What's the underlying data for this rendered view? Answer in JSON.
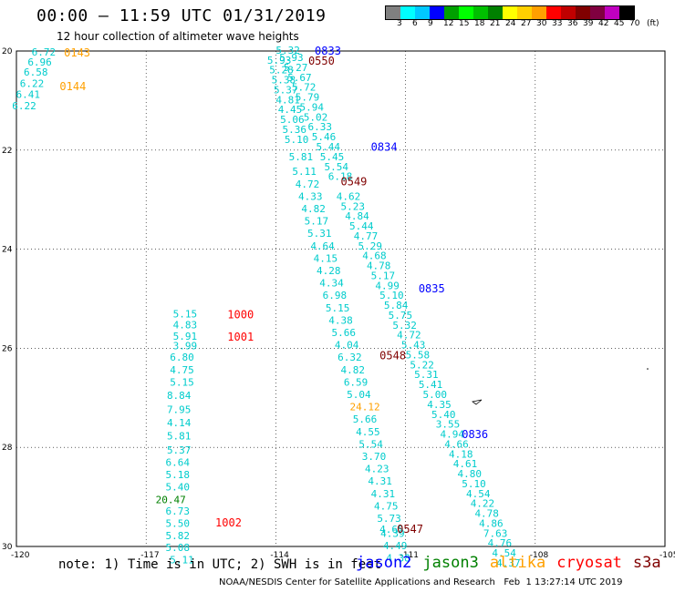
{
  "header": {
    "title": "00:00 – 11:59 UTC 01/31/2019",
    "subtitle": "12 hour collection of altimeter wave heights"
  },
  "colorbar": {
    "unit_label": "(ft)",
    "labels": [
      "3",
      "6",
      "9",
      "12",
      "15",
      "18",
      "21",
      "24",
      "27",
      "30",
      "33",
      "36",
      "39",
      "42",
      "45",
      "70"
    ],
    "colors": [
      "#808080",
      "#00ffff",
      "#00c8ff",
      "#0000ff",
      "#00a000",
      "#00ff00",
      "#00c000",
      "#008000",
      "#ffff00",
      "#ffd000",
      "#ffa000",
      "#ff0000",
      "#c00000",
      "#800000",
      "#800040",
      "#c000c0",
      "#000000"
    ]
  },
  "axes": {
    "x_ticks": [
      "-120",
      "-117",
      "-114",
      "-111",
      "-108",
      "-105"
    ],
    "y_ticks": [
      "20",
      "22",
      "24",
      "26",
      "28",
      "30"
    ]
  },
  "legend": {
    "jason2": {
      "label": "jason2",
      "color": "#0000ff"
    },
    "jason3": {
      "label": "jason3",
      "color": "#008000"
    },
    "altika": {
      "label": "altika",
      "color": "#ffa000"
    },
    "cryosat": {
      "label": "cryosat",
      "color": "#ff0000"
    },
    "s3a": {
      "label": "s3a",
      "color": "#800000"
    }
  },
  "footer": {
    "note": "note: 1) Time is in UTC; 2) SWH is in feet",
    "credit": "NOAA/NESDIS Center for Satellite Applications and Research   Feb  1 13:27:14 UTC 2019"
  },
  "time_labels": [
    {
      "text": "0143",
      "sat": "altika",
      "lon": -118.9,
      "lat": 20.02
    },
    {
      "text": "0144",
      "sat": "altika",
      "lon": -119.0,
      "lat": 20.7
    },
    {
      "text": "0833",
      "sat": "jason2",
      "lon": -113.1,
      "lat": 19.98
    },
    {
      "text": "0550",
      "sat": "s3a",
      "lon": -113.25,
      "lat": 20.18
    },
    {
      "text": "0834",
      "sat": "jason2",
      "lon": -111.8,
      "lat": 21.92
    },
    {
      "text": "0549",
      "sat": "s3a",
      "lon": -112.5,
      "lat": 22.62
    },
    {
      "text": "0835",
      "sat": "jason2",
      "lon": -110.7,
      "lat": 24.78
    },
    {
      "text": "1000",
      "sat": "cryosat",
      "lon": -115.12,
      "lat": 25.3
    },
    {
      "text": "1001",
      "sat": "cryosat",
      "lon": -115.12,
      "lat": 25.75
    },
    {
      "text": "0548",
      "sat": "s3a",
      "lon": -111.6,
      "lat": 26.13
    },
    {
      "text": "0836",
      "sat": "jason2",
      "lon": -109.7,
      "lat": 27.72
    },
    {
      "text": "1002",
      "sat": "cryosat",
      "lon": -115.4,
      "lat": 29.5
    },
    {
      "text": "0547",
      "sat": "s3a",
      "lon": -111.2,
      "lat": 29.63
    }
  ],
  "tracks": [
    {
      "sat": "altika",
      "points": [
        {
          "v": "6.72",
          "lon": -119.65,
          "lat": 20.02
        },
        {
          "v": "6.96",
          "lon": -119.74,
          "lat": 20.22
        },
        {
          "v": "6.58",
          "lon": -119.83,
          "lat": 20.42
        },
        {
          "v": "6.22",
          "lon": -119.92,
          "lat": 20.65
        },
        {
          "v": "6.41",
          "lon": -120.01,
          "lat": 20.87
        },
        {
          "v": "6.22",
          "lon": -120.1,
          "lat": 21.1
        }
      ]
    },
    {
      "sat": "jason2",
      "points": [
        {
          "v": "5.32",
          "lon": -114.0,
          "lat": 19.98
        },
        {
          "v": "5.93",
          "lon": -113.92,
          "lat": 20.13
        },
        {
          "v": "5.27",
          "lon": -113.82,
          "lat": 20.33
        },
        {
          "v": "5.67",
          "lon": -113.73,
          "lat": 20.53
        },
        {
          "v": "5.72",
          "lon": -113.63,
          "lat": 20.73
        },
        {
          "v": "5.79",
          "lon": -113.55,
          "lat": 20.93
        },
        {
          "v": "5.94",
          "lon": -113.45,
          "lat": 21.13
        },
        {
          "v": "5.02",
          "lon": -113.36,
          "lat": 21.33
        },
        {
          "v": "6.33",
          "lon": -113.26,
          "lat": 21.53
        },
        {
          "v": "5.46",
          "lon": -113.17,
          "lat": 21.73
        },
        {
          "v": "5.44",
          "lon": -113.07,
          "lat": 21.93
        },
        {
          "v": "5.45",
          "lon": -112.98,
          "lat": 22.13
        },
        {
          "v": "5.54",
          "lon": -112.88,
          "lat": 22.33
        },
        {
          "v": "6.18",
          "lon": -112.79,
          "lat": 22.53
        },
        {
          "v": "4.62",
          "lon": -112.6,
          "lat": 22.93
        },
        {
          "v": "5.23",
          "lon": -112.5,
          "lat": 23.13
        },
        {
          "v": "4.84",
          "lon": -112.4,
          "lat": 23.33
        },
        {
          "v": "5.44",
          "lon": -112.3,
          "lat": 23.53
        },
        {
          "v": "4.77",
          "lon": -112.2,
          "lat": 23.73
        },
        {
          "v": "5.29",
          "lon": -112.1,
          "lat": 23.93
        },
        {
          "v": "4.68",
          "lon": -112.0,
          "lat": 24.13
        },
        {
          "v": "4.78",
          "lon": -111.9,
          "lat": 24.33
        },
        {
          "v": "5.17",
          "lon": -111.8,
          "lat": 24.53
        },
        {
          "v": "4.99",
          "lon": -111.7,
          "lat": 24.73
        },
        {
          "v": "5.10",
          "lon": -111.6,
          "lat": 24.93
        },
        {
          "v": "5.84",
          "lon": -111.5,
          "lat": 25.13
        },
        {
          "v": "5.75",
          "lon": -111.4,
          "lat": 25.33
        },
        {
          "v": "5.32",
          "lon": -111.3,
          "lat": 25.53
        },
        {
          "v": "4.72",
          "lon": -111.2,
          "lat": 25.73
        },
        {
          "v": "5.43",
          "lon": -111.1,
          "lat": 25.93
        },
        {
          "v": "5.58",
          "lon": -111.0,
          "lat": 26.13
        },
        {
          "v": "5.22",
          "lon": -110.9,
          "lat": 26.33
        },
        {
          "v": "5.31",
          "lon": -110.8,
          "lat": 26.53
        },
        {
          "v": "5.41",
          "lon": -110.7,
          "lat": 26.73
        },
        {
          "v": "5.00",
          "lon": -110.6,
          "lat": 26.93
        },
        {
          "v": "4.35",
          "lon": -110.5,
          "lat": 27.13
        },
        {
          "v": "5.40",
          "lon": -110.4,
          "lat": 27.33
        },
        {
          "v": "3.55",
          "lon": -110.3,
          "lat": 27.53
        },
        {
          "v": "4.94",
          "lon": -110.2,
          "lat": 27.73
        },
        {
          "v": "4.66",
          "lon": -110.1,
          "lat": 27.93
        },
        {
          "v": "4.18",
          "lon": -110.0,
          "lat": 28.13
        },
        {
          "v": "4.61",
          "lon": -109.9,
          "lat": 28.33
        },
        {
          "v": "4.80",
          "lon": -109.8,
          "lat": 28.53
        },
        {
          "v": "5.10",
          "lon": -109.7,
          "lat": 28.73
        },
        {
          "v": "4.54",
          "lon": -109.6,
          "lat": 28.93
        },
        {
          "v": "4.22",
          "lon": -109.5,
          "lat": 29.13
        },
        {
          "v": "4.78",
          "lon": -109.4,
          "lat": 29.33
        },
        {
          "v": "4.86",
          "lon": -109.3,
          "lat": 29.53
        },
        {
          "v": "7.63",
          "lon": -109.2,
          "lat": 29.73
        },
        {
          "v": "4.76",
          "lon": -109.1,
          "lat": 29.93
        },
        {
          "v": "4.54",
          "lon": -109.0,
          "lat": 30.13
        },
        {
          "v": "4.37",
          "lon": -108.9,
          "lat": 30.33
        }
      ]
    },
    {
      "sat": "s3a",
      "points": [
        {
          "v": "5.93",
          "lon": -114.2,
          "lat": 20.18
        },
        {
          "v": "5.28",
          "lon": -114.15,
          "lat": 20.38
        },
        {
          "v": "5.38",
          "lon": -114.1,
          "lat": 20.58
        },
        {
          "v": "5.37",
          "lon": -114.05,
          "lat": 20.78
        },
        {
          "v": "4.81",
          "lon": -114.0,
          "lat": 20.98
        },
        {
          "v": "4.45",
          "lon": -113.95,
          "lat": 21.18
        },
        {
          "v": "5.06",
          "lon": -113.9,
          "lat": 21.38
        },
        {
          "v": "5.36",
          "lon": -113.85,
          "lat": 21.58
        },
        {
          "v": "5.10",
          "lon": -113.8,
          "lat": 21.78
        },
        {
          "v": "5.81",
          "lon": -113.7,
          "lat": 22.13
        },
        {
          "v": "5.11",
          "lon": -113.62,
          "lat": 22.43
        },
        {
          "v": "4.72",
          "lon": -113.55,
          "lat": 22.68
        },
        {
          "v": "4.33",
          "lon": -113.48,
          "lat": 22.93
        },
        {
          "v": "4.82",
          "lon": -113.41,
          "lat": 23.18
        },
        {
          "v": "5.17",
          "lon": -113.34,
          "lat": 23.43
        },
        {
          "v": "5.31",
          "lon": -113.27,
          "lat": 23.68
        },
        {
          "v": "4.64",
          "lon": -113.2,
          "lat": 23.93
        },
        {
          "v": "4.15",
          "lon": -113.13,
          "lat": 24.18
        },
        {
          "v": "4.28",
          "lon": -113.06,
          "lat": 24.43
        },
        {
          "v": "4.34",
          "lon": -112.99,
          "lat": 24.68
        },
        {
          "v": "6.98",
          "lon": -112.92,
          "lat": 24.93
        },
        {
          "v": "5.15",
          "lon": -112.85,
          "lat": 25.18
        },
        {
          "v": "4.38",
          "lon": -112.78,
          "lat": 25.43
        },
        {
          "v": "5.66",
          "lon": -112.71,
          "lat": 25.68
        },
        {
          "v": "4.04",
          "lon": -112.64,
          "lat": 25.93
        },
        {
          "v": "6.32",
          "lon": -112.57,
          "lat": 26.18
        },
        {
          "v": "4.82",
          "lon": -112.5,
          "lat": 26.43
        },
        {
          "v": "6.59",
          "lon": -112.43,
          "lat": 26.68
        },
        {
          "v": "5.04",
          "lon": -112.36,
          "lat": 26.93
        },
        {
          "v": "5.66",
          "lon": -112.22,
          "lat": 27.43
        },
        {
          "v": "4.55",
          "lon": -112.15,
          "lat": 27.68
        },
        {
          "v": "5.54",
          "lon": -112.08,
          "lat": 27.93
        },
        {
          "v": "3.70",
          "lon": -112.01,
          "lat": 28.18
        },
        {
          "v": "4.23",
          "lon": -111.94,
          "lat": 28.43
        },
        {
          "v": "4.31",
          "lon": -111.87,
          "lat": 28.68
        },
        {
          "v": "4.31",
          "lon": -111.8,
          "lat": 28.93
        },
        {
          "v": "4.75",
          "lon": -111.73,
          "lat": 29.18
        },
        {
          "v": "5.73",
          "lon": -111.66,
          "lat": 29.43
        },
        {
          "v": "4.65",
          "lon": -111.6,
          "lat": 29.65
        },
        {
          "v": "4.39",
          "lon": -111.58,
          "lat": 29.73
        },
        {
          "v": "4.49",
          "lon": -111.52,
          "lat": 29.98
        },
        {
          "v": "4.38",
          "lon": -111.45,
          "lat": 30.23
        }
      ]
    },
    {
      "sat": "altika_single",
      "points": [
        {
          "v": "24.12",
          "lon": -112.29,
          "lat": 27.18
        }
      ]
    },
    {
      "sat": "cryosat",
      "points": [
        {
          "v": "5.15",
          "lon": -116.38,
          "lat": 25.3
        },
        {
          "v": "4.83",
          "lon": -116.38,
          "lat": 25.52
        },
        {
          "v": "5.91",
          "lon": -116.38,
          "lat": 25.75
        },
        {
          "v": "3.99",
          "lon": -116.38,
          "lat": 25.95
        },
        {
          "v": "6.80",
          "lon": -116.45,
          "lat": 26.18
        },
        {
          "v": "4.75",
          "lon": -116.45,
          "lat": 26.43
        },
        {
          "v": "5.15",
          "lon": -116.45,
          "lat": 26.68
        },
        {
          "v": "8.84",
          "lon": -116.52,
          "lat": 26.95
        },
        {
          "v": "7.95",
          "lon": -116.52,
          "lat": 27.23
        },
        {
          "v": "4.14",
          "lon": -116.52,
          "lat": 27.5
        },
        {
          "v": "5.81",
          "lon": -116.52,
          "lat": 27.77
        },
        {
          "v": "5.37",
          "lon": -116.52,
          "lat": 28.05
        },
        {
          "v": "6.64",
          "lon": -116.55,
          "lat": 28.3
        },
        {
          "v": "5.18",
          "lon": -116.55,
          "lat": 28.55
        },
        {
          "v": "5.40",
          "lon": -116.55,
          "lat": 28.8
        },
        {
          "v": "6.73",
          "lon": -116.55,
          "lat": 29.28
        },
        {
          "v": "5.50",
          "lon": -116.55,
          "lat": 29.53
        },
        {
          "v": "5.82",
          "lon": -116.55,
          "lat": 29.78
        },
        {
          "v": "5.08",
          "lon": -116.55,
          "lat": 30.02
        },
        {
          "v": "5.11",
          "lon": -116.45,
          "lat": 30.27
        }
      ]
    },
    {
      "sat": "jason3",
      "points": [
        {
          "v": "20.47",
          "lon": -116.78,
          "lat": 29.05
        }
      ]
    }
  ]
}
